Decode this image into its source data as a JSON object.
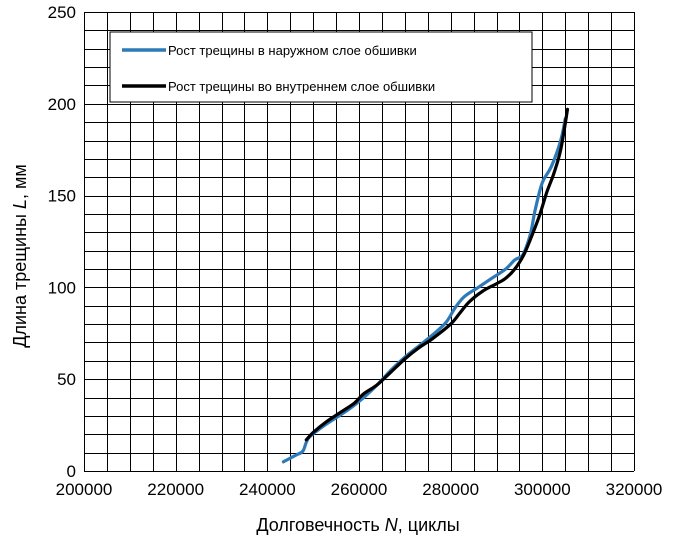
{
  "chart_data": {
    "type": "line",
    "title": "",
    "xlabel_prefix": "Долговечность ",
    "xlabel_var": "N",
    "xlabel_suffix": ", циклы",
    "ylabel_prefix": "Длина трещины  ",
    "ylabel_var": "L",
    "ylabel_suffix": ", мм",
    "xlim": [
      200000,
      320000
    ],
    "ylim": [
      0,
      250
    ],
    "x_major_step": 20000,
    "y_major_step": 50,
    "x_minor_step": 5000,
    "y_minor_step": 10,
    "x_ticks": [
      "200000",
      "220000",
      "240000",
      "260000",
      "280000",
      "300000",
      "320000"
    ],
    "y_ticks": [
      "0",
      "50",
      "100",
      "150",
      "200",
      "250"
    ],
    "grid": true,
    "legend_position": "top-right",
    "series": [
      {
        "name": "Рост трещины в наружном слое обшивки",
        "color": "#2e7ab8",
        "x": [
          243500,
          245000,
          246500,
          247800,
          249000,
          252000,
          255000,
          258000,
          261000,
          264000,
          267000,
          270000,
          273000,
          276000,
          279000,
          281000,
          283000,
          286000,
          289000,
          292000,
          294000,
          295500,
          296500,
          297500,
          298500,
          300000,
          302000,
          304000,
          305000
        ],
        "y": [
          5,
          7,
          9,
          11,
          18,
          24,
          29,
          34,
          40,
          47,
          55,
          62,
          68,
          74,
          81,
          89,
          95,
          100,
          105,
          110,
          115,
          117,
          122,
          130,
          143,
          157,
          166,
          180,
          192
        ]
      },
      {
        "name": "Рост трещины во внутреннем слое обшивки",
        "color": "#000000",
        "x": [
          248500,
          250000,
          253000,
          256000,
          259000,
          261000,
          264000,
          267000,
          270000,
          273000,
          276000,
          280000,
          282000,
          284000,
          287000,
          290000,
          292000,
          294000,
          296000,
          298000,
          299500,
          301000,
          302500,
          304000,
          305500
        ],
        "y": [
          17,
          21,
          27,
          32,
          37,
          42,
          47,
          54,
          61,
          67,
          72,
          80,
          86,
          92,
          98,
          102,
          105,
          110,
          118,
          130,
          140,
          152,
          162,
          175,
          197
        ]
      }
    ]
  }
}
